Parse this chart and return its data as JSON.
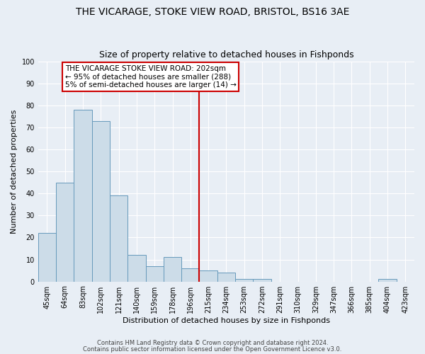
{
  "title1": "THE VICARAGE, STOKE VIEW ROAD, BRISTOL, BS16 3AE",
  "title2": "Size of property relative to detached houses in Fishponds",
  "xlabel": "Distribution of detached houses by size in Fishponds",
  "ylabel": "Number of detached properties",
  "categories": [
    "45sqm",
    "64sqm",
    "83sqm",
    "102sqm",
    "121sqm",
    "140sqm",
    "159sqm",
    "178sqm",
    "196sqm",
    "215sqm",
    "234sqm",
    "253sqm",
    "272sqm",
    "291sqm",
    "310sqm",
    "329sqm",
    "347sqm",
    "366sqm",
    "385sqm",
    "404sqm",
    "423sqm"
  ],
  "values": [
    22,
    45,
    78,
    73,
    39,
    12,
    7,
    11,
    6,
    5,
    4,
    1,
    1,
    0,
    0,
    0,
    0,
    0,
    0,
    1,
    0
  ],
  "bar_color": "#ccdce8",
  "bar_edge_color": "#6699bb",
  "vline_x_index": 8,
  "vline_color": "#cc0000",
  "ylim": [
    0,
    100
  ],
  "yticks": [
    0,
    10,
    20,
    30,
    40,
    50,
    60,
    70,
    80,
    90,
    100
  ],
  "annotation_text": "THE VICARAGE STOKE VIEW ROAD: 202sqm\n← 95% of detached houses are smaller (288)\n5% of semi-detached houses are larger (14) →",
  "annotation_box_color": "#ffffff",
  "annotation_box_edge": "#cc0000",
  "footer1": "Contains HM Land Registry data © Crown copyright and database right 2024.",
  "footer2": "Contains public sector information licensed under the Open Government Licence v3.0.",
  "background_color": "#e8eef5",
  "grid_color": "#d0d8e4",
  "title1_fontsize": 10,
  "title2_fontsize": 9,
  "tick_fontsize": 7,
  "ylabel_fontsize": 8,
  "xlabel_fontsize": 8,
  "footer_fontsize": 6
}
